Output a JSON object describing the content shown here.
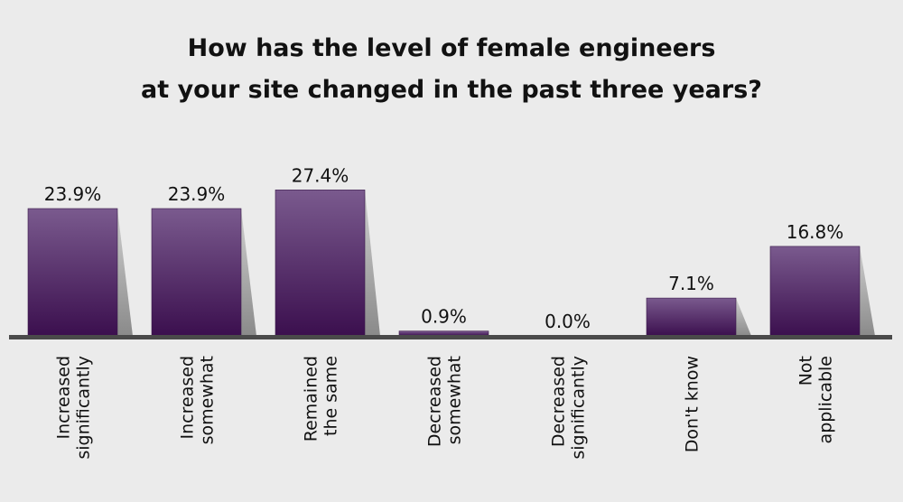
{
  "chart_data": {
    "type": "bar",
    "title": [
      "How has the level of female engineers",
      "at your site changed in the past three years?"
    ],
    "categories": [
      [
        "Increased",
        "significantly"
      ],
      [
        "Increased",
        "somewhat"
      ],
      [
        "Remained",
        "the same"
      ],
      [
        "Decreased",
        "somewhat"
      ],
      [
        "Decreased",
        "significantly"
      ],
      [
        "Don't know"
      ],
      [
        "Not",
        "applicable"
      ]
    ],
    "values": [
      23.9,
      23.9,
      27.4,
      0.9,
      0.0,
      7.1,
      16.8
    ],
    "value_labels": [
      "23.9%",
      "23.9%",
      "27.4%",
      "0.9%",
      "0.0%",
      "7.1%",
      "16.8%"
    ],
    "xlabel": "",
    "ylabel": "",
    "ylim": [
      0,
      30
    ],
    "grid": false,
    "colors": {
      "bar_top": "#7a5a8e",
      "bar_bottom": "#3b0f4e",
      "axis": "#4a4a4a",
      "shadow": "#8a8a8a",
      "background": "#ebebeb"
    }
  }
}
